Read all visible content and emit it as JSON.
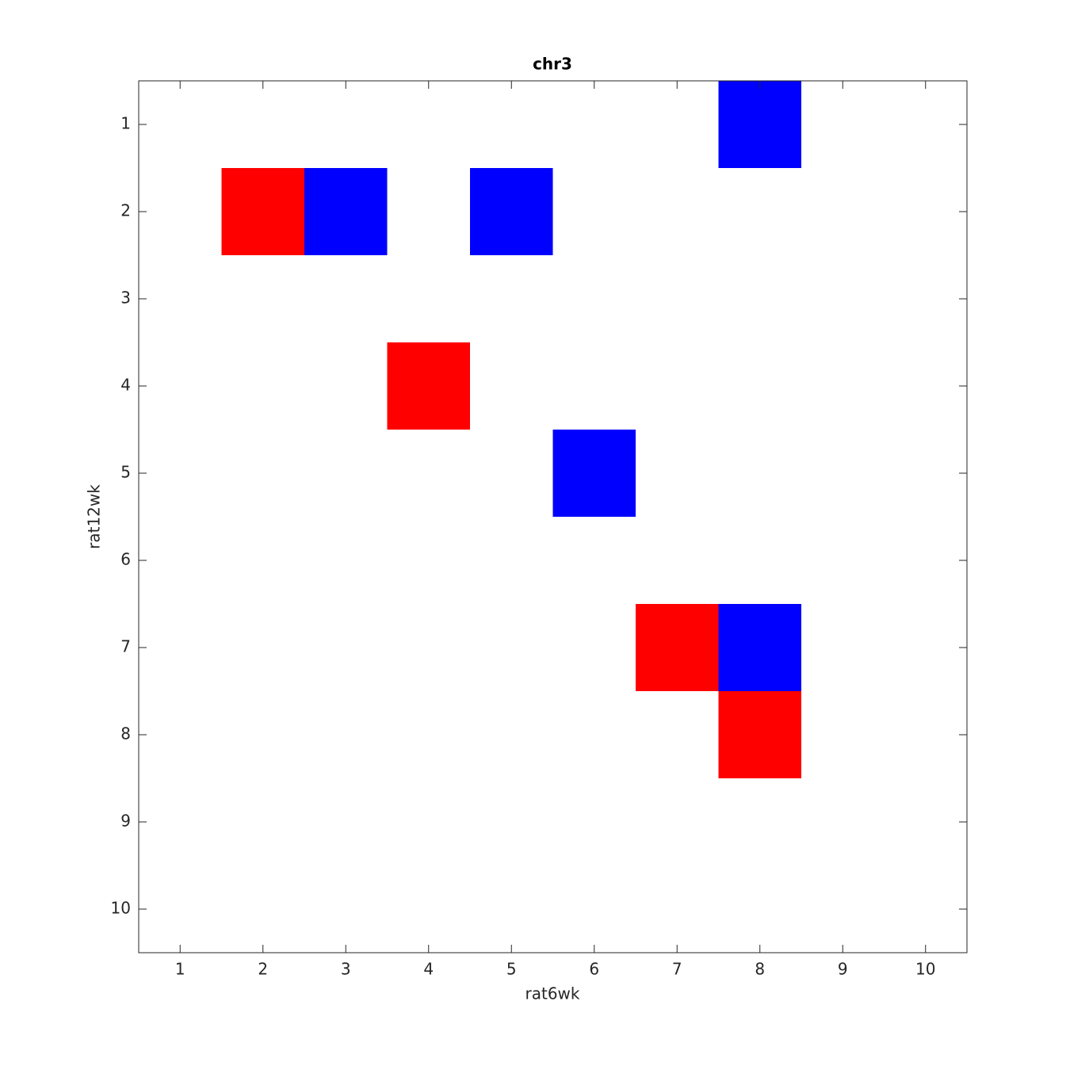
{
  "chart_data": {
    "type": "heatmap",
    "title": "chr3",
    "x_label": "rat6wk",
    "y_label": "rat12wk",
    "xlim": [
      0.5,
      10.5
    ],
    "ylim": [
      0.5,
      10.5
    ],
    "y_reversed": true,
    "xticks": [
      1,
      2,
      3,
      4,
      5,
      6,
      7,
      8,
      9,
      10
    ],
    "yticks": [
      1,
      2,
      3,
      4,
      5,
      6,
      7,
      8,
      9,
      10
    ],
    "series": [
      {
        "color": "#ff0000",
        "x": [
          2,
          4,
          7,
          8
        ],
        "y": [
          2,
          4,
          7,
          8
        ]
      },
      {
        "color": "#0000ff",
        "x": [
          8,
          3,
          5,
          6,
          8
        ],
        "y": [
          1,
          2,
          2,
          5,
          7
        ]
      }
    ]
  }
}
